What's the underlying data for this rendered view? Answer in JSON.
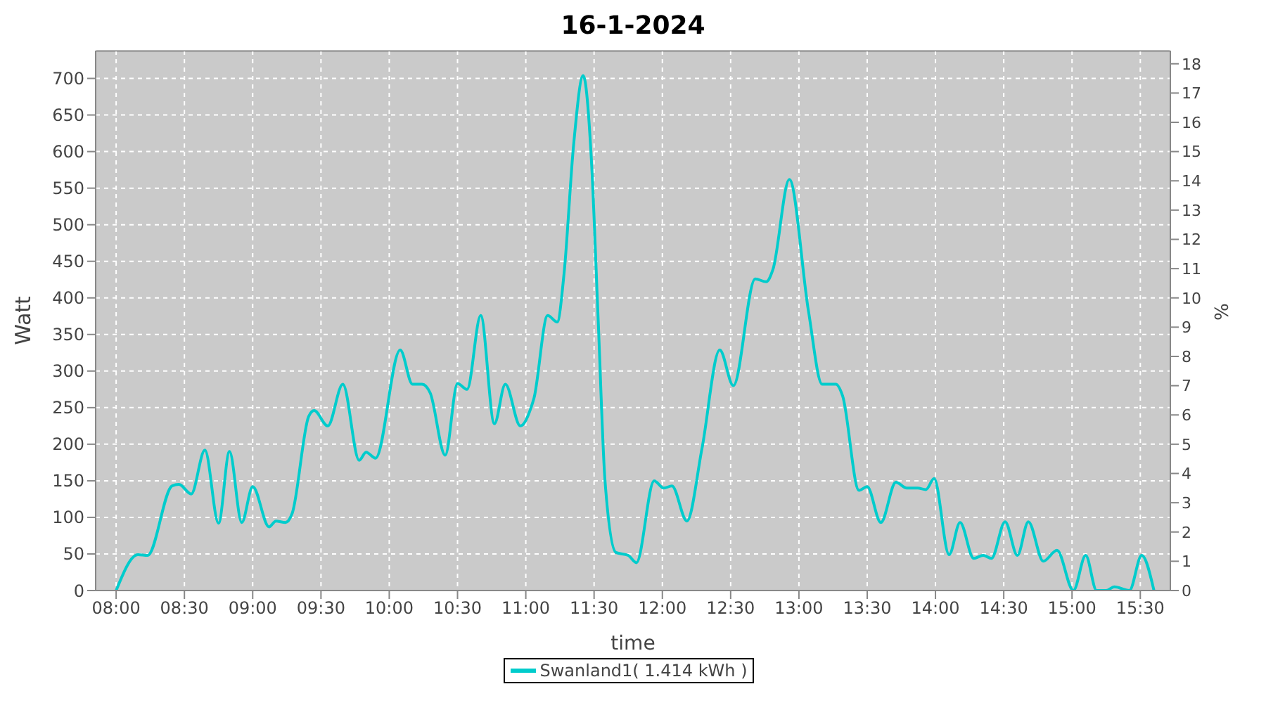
{
  "chart_data": {
    "type": "line",
    "title": "16-1-2024",
    "xlabel": "time",
    "ylabel": "Watt",
    "y2label": "%",
    "x": [
      8.0,
      8.16,
      8.23,
      8.41,
      8.46,
      8.55,
      8.65,
      8.75,
      8.83,
      8.92,
      9.0,
      9.12,
      9.17,
      9.24,
      9.29,
      9.41,
      9.45,
      9.55,
      9.66,
      9.78,
      9.83,
      9.9,
      10.08,
      10.17,
      10.24,
      10.3,
      10.41,
      10.5,
      10.57,
      10.67,
      10.77,
      10.85,
      10.96,
      11.04,
      11.06,
      11.16,
      11.23,
      11.28,
      11.35,
      11.42,
      11.48,
      11.53,
      11.58,
      11.66,
      11.75,
      11.81,
      11.94,
      12.01,
      12.07,
      12.18,
      12.29,
      12.42,
      12.52,
      12.68,
      12.76,
      12.81,
      12.93,
      13.07,
      13.17,
      13.27,
      13.32,
      13.44,
      13.5,
      13.6,
      13.71,
      13.79,
      13.87,
      13.93,
      13.99,
      14.1,
      14.18,
      14.28,
      14.35,
      14.41,
      14.51,
      14.6,
      14.68,
      14.79,
      14.89,
      15.01,
      15.1,
      15.18,
      15.25,
      15.31,
      15.42,
      15.51,
      15.6
    ],
    "series": [
      {
        "name": "Swanland1( 1.414 kWh )",
        "color": "#00cccc",
        "values": [
          0,
          49,
          48,
          143,
          145,
          132,
          192,
          92,
          190,
          93,
          142,
          87,
          95,
          93,
          106,
          238,
          246,
          225,
          282,
          178,
          189,
          181,
          329,
          282,
          282,
          270,
          185,
          283,
          275,
          376,
          228,
          282,
          225,
          251,
          263,
          376,
          367,
          433,
          609,
          704,
          590,
          370,
          150,
          52,
          48,
          38,
          150,
          140,
          143,
          95,
          194,
          329,
          280,
          426,
          422,
          439,
          562,
          382,
          282,
          282,
          266,
          137,
          142,
          93,
          148,
          140,
          140,
          138,
          153,
          49,
          93,
          44,
          48,
          44,
          94,
          48,
          94,
          40,
          55,
          0,
          48,
          0,
          0,
          5,
          0,
          48,
          0
        ]
      }
    ],
    "xlim": [
      7.85,
      15.72
    ],
    "xticks": [
      {
        "value": 8,
        "label": "08:00"
      },
      {
        "value": 8.5,
        "label": "08:30"
      },
      {
        "value": 9,
        "label": "09:00"
      },
      {
        "value": 9.5,
        "label": "09:30"
      },
      {
        "value": 10,
        "label": "10:00"
      },
      {
        "value": 10.5,
        "label": "10:30"
      },
      {
        "value": 11,
        "label": "11:00"
      },
      {
        "value": 11.5,
        "label": "11:30"
      },
      {
        "value": 12,
        "label": "12:00"
      },
      {
        "value": 12.5,
        "label": "12:30"
      },
      {
        "value": 13,
        "label": "13:00"
      },
      {
        "value": 13.5,
        "label": "13:30"
      },
      {
        "value": 14,
        "label": "14:00"
      },
      {
        "value": 14.5,
        "label": "14:30"
      },
      {
        "value": 15,
        "label": "15:00"
      },
      {
        "value": 15.5,
        "label": "15:30"
      }
    ],
    "ylim": [
      0,
      738
    ],
    "yticks": [
      0,
      50,
      100,
      150,
      200,
      250,
      300,
      350,
      400,
      450,
      500,
      550,
      600,
      650,
      700
    ],
    "y2lim": [
      0,
      18.45
    ],
    "y2ticks": [
      0,
      1,
      2,
      3,
      4,
      5,
      6,
      7,
      8,
      9,
      10,
      11,
      12,
      13,
      14,
      15,
      16,
      17,
      18
    ],
    "grid": true,
    "legend": "bottom",
    "marker": "none",
    "line_style": "solid"
  }
}
